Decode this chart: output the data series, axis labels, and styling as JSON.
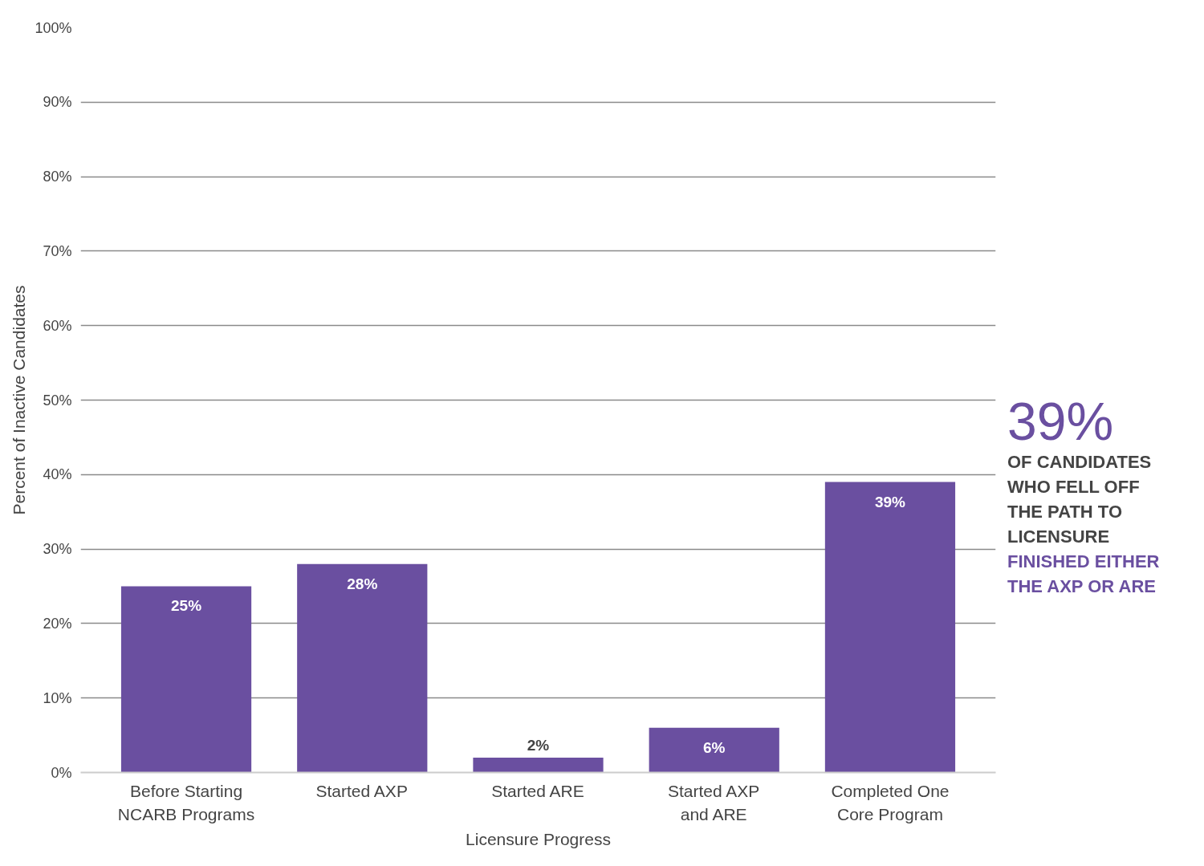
{
  "chart_data": {
    "type": "bar",
    "categories": [
      "Before Starting\nNCARB Programs",
      "Started AXP",
      "Started ARE",
      "Started AXP\nand ARE",
      "Completed One\nCore Program"
    ],
    "values": [
      25,
      28,
      2,
      6,
      39
    ],
    "color": "#6a4fa0",
    "xlabel": "Licensure Progress",
    "ylabel": "Percent of Inactive Candidates",
    "ylim": [
      0,
      100
    ],
    "yticks": [
      {
        "value": 0,
        "label": "0%"
      },
      {
        "value": 10,
        "label": "10%"
      },
      {
        "value": 20,
        "label": "20%"
      },
      {
        "value": 30,
        "label": "30%"
      },
      {
        "value": 40,
        "label": "40%"
      },
      {
        "value": 50,
        "label": "50%"
      },
      {
        "value": 60,
        "label": "60%"
      },
      {
        "value": 70,
        "label": "70%"
      },
      {
        "value": 80,
        "label": "80%"
      },
      {
        "value": 90,
        "label": "90%"
      },
      {
        "value": 100,
        "label": "100%"
      }
    ],
    "grid": "y",
    "data_labels": true,
    "value_labels": [
      "25%",
      "28%",
      "2%",
      "6%",
      "39%"
    ],
    "annotations": [
      "39%",
      "OF CANDIDATES WHO FELL OFF THE PATH TO LICENSURE",
      "FINISHED EITHER THE AXP OR ARE"
    ]
  }
}
